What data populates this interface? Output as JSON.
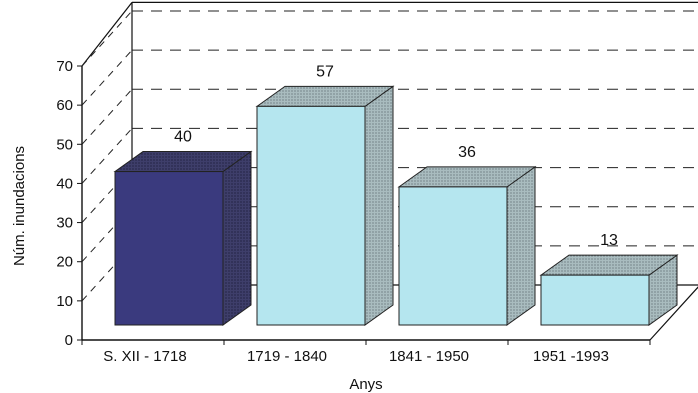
{
  "chart_data": {
    "type": "bar",
    "style": "3d",
    "title": "",
    "xlabel": "Anys",
    "ylabel": "Núm. inundacions",
    "categories": [
      "S. XII - 1718",
      "1719 - 1840",
      "1841 - 1950",
      "1951 -1993"
    ],
    "values": [
      40,
      57,
      36,
      13
    ],
    "data_labels": [
      "40",
      "57",
      "36",
      "13"
    ],
    "ylim": [
      0,
      70
    ],
    "yticks": [
      "0",
      "10",
      "20",
      "30",
      "40",
      "50",
      "60",
      "70"
    ],
    "grid": "dashed-horizontal",
    "legend": "none",
    "colors": {
      "first_bar": "#3a3a7e",
      "other_bars": "#b5e6ef",
      "bar_side": "#8a9ea2",
      "bar_top": "#9fb6ba",
      "gridline": "#222222"
    }
  }
}
